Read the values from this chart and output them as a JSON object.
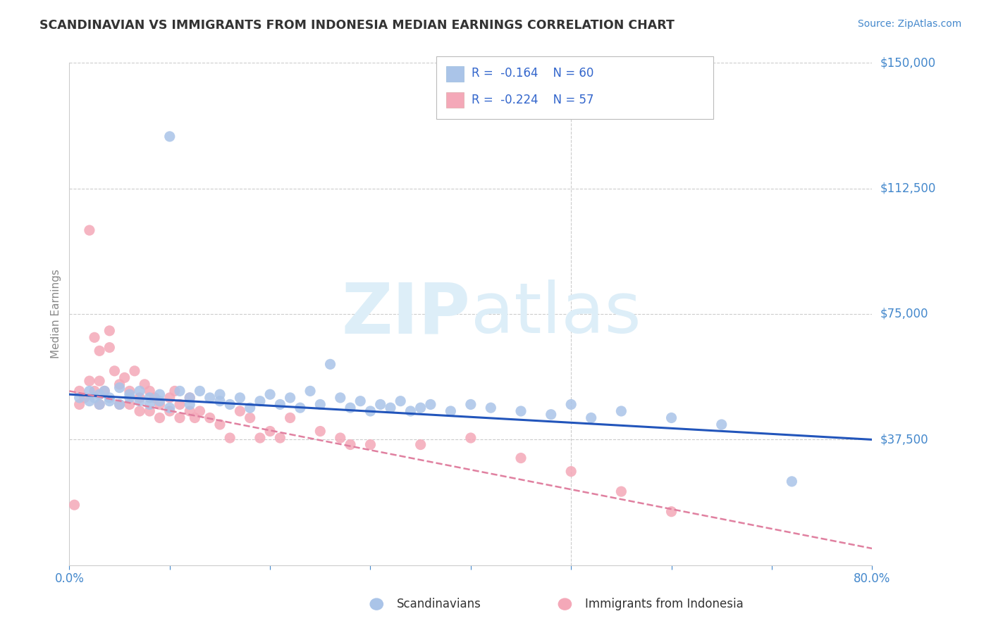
{
  "title": "SCANDINAVIAN VS IMMIGRANTS FROM INDONESIA MEDIAN EARNINGS CORRELATION CHART",
  "source": "Source: ZipAtlas.com",
  "ylabel": "Median Earnings",
  "xlim": [
    0.0,
    0.8
  ],
  "ylim": [
    0,
    150000
  ],
  "yticks": [
    0,
    37500,
    75000,
    112500,
    150000
  ],
  "ytick_labels": [
    "",
    "$37,500",
    "$75,000",
    "$112,500",
    "$150,000"
  ],
  "xticks": [
    0.0,
    0.1,
    0.2,
    0.3,
    0.4,
    0.5,
    0.6,
    0.7,
    0.8
  ],
  "xtick_labels": [
    "0.0%",
    "",
    "",
    "",
    "",
    "",
    "",
    "",
    "80.0%"
  ],
  "scatter_blue_color": "#aac4e8",
  "scatter_pink_color": "#f4a8b8",
  "line_blue_color": "#2255bb",
  "line_pink_color": "#e080a0",
  "tick_color": "#4488cc",
  "grid_color": "#cccccc",
  "watermark_color": "#ddeef8",
  "legend_label1": "Scandinavians",
  "legend_label2": "Immigrants from Indonesia",
  "blue_scatter_x": [
    0.01,
    0.02,
    0.02,
    0.025,
    0.03,
    0.03,
    0.035,
    0.04,
    0.04,
    0.05,
    0.05,
    0.06,
    0.06,
    0.07,
    0.07,
    0.08,
    0.08,
    0.09,
    0.09,
    0.1,
    0.1,
    0.11,
    0.12,
    0.12,
    0.13,
    0.14,
    0.15,
    0.15,
    0.16,
    0.17,
    0.18,
    0.19,
    0.2,
    0.21,
    0.22,
    0.23,
    0.24,
    0.25,
    0.26,
    0.27,
    0.28,
    0.29,
    0.3,
    0.31,
    0.32,
    0.33,
    0.34,
    0.35,
    0.36,
    0.38,
    0.4,
    0.42,
    0.45,
    0.48,
    0.5,
    0.52,
    0.55,
    0.6,
    0.65,
    0.72
  ],
  "blue_scatter_y": [
    50000,
    49000,
    52000,
    50000,
    51000,
    48000,
    52000,
    50000,
    49000,
    53000,
    48000,
    50000,
    51000,
    49000,
    52000,
    50000,
    48000,
    51000,
    49000,
    47000,
    128000,
    52000,
    50000,
    48000,
    52000,
    50000,
    49000,
    51000,
    48000,
    50000,
    47000,
    49000,
    51000,
    48000,
    50000,
    47000,
    52000,
    48000,
    60000,
    50000,
    47000,
    49000,
    46000,
    48000,
    47000,
    49000,
    46000,
    47000,
    48000,
    46000,
    48000,
    47000,
    46000,
    45000,
    48000,
    44000,
    46000,
    44000,
    42000,
    25000
  ],
  "pink_scatter_x": [
    0.005,
    0.01,
    0.01,
    0.015,
    0.02,
    0.02,
    0.025,
    0.025,
    0.03,
    0.03,
    0.03,
    0.035,
    0.04,
    0.04,
    0.045,
    0.05,
    0.05,
    0.055,
    0.06,
    0.06,
    0.065,
    0.07,
    0.07,
    0.075,
    0.08,
    0.08,
    0.085,
    0.09,
    0.09,
    0.1,
    0.1,
    0.105,
    0.11,
    0.11,
    0.12,
    0.12,
    0.125,
    0.13,
    0.14,
    0.15,
    0.16,
    0.17,
    0.18,
    0.19,
    0.2,
    0.21,
    0.22,
    0.25,
    0.27,
    0.28,
    0.3,
    0.35,
    0.4,
    0.45,
    0.5,
    0.55,
    0.6
  ],
  "pink_scatter_y": [
    18000,
    48000,
    52000,
    50000,
    100000,
    55000,
    68000,
    52000,
    64000,
    55000,
    48000,
    52000,
    70000,
    65000,
    58000,
    54000,
    48000,
    56000,
    52000,
    48000,
    58000,
    50000,
    46000,
    54000,
    52000,
    46000,
    50000,
    48000,
    44000,
    50000,
    46000,
    52000,
    48000,
    44000,
    46000,
    50000,
    44000,
    46000,
    44000,
    42000,
    38000,
    46000,
    44000,
    38000,
    40000,
    38000,
    44000,
    40000,
    38000,
    36000,
    36000,
    36000,
    38000,
    32000,
    28000,
    22000,
    16000
  ],
  "blue_line_x0": 0.0,
  "blue_line_y0": 51000,
  "blue_line_x1": 0.8,
  "blue_line_y1": 37500,
  "pink_line_x0": 0.0,
  "pink_line_y0": 52000,
  "pink_line_x1": 0.8,
  "pink_line_y1": 5000
}
